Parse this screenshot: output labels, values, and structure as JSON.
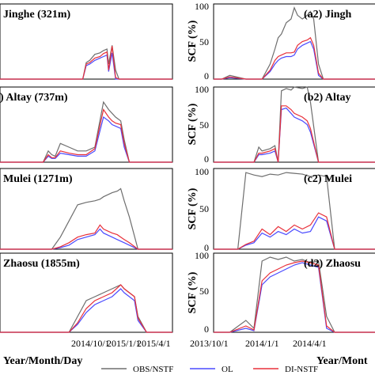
{
  "colors": {
    "obs": "#6e6e6e",
    "ol": "#4a4aff",
    "di": "#e8303a"
  },
  "legend": {
    "obs": "OBS/NSTF",
    "ol": "OL",
    "di": "DI-NSTF"
  },
  "left_column": {
    "xlabel": "Year/Month/Day",
    "xticks": [
      "2014/10/1",
      "2015/1/1",
      "2015/4/1"
    ]
  },
  "right_column": {
    "ylabel": "SCF (%)",
    "yticks": [
      "0",
      "50",
      "100"
    ],
    "xlabel": "Year/Mont",
    "xticks": [
      "2013/10/1",
      "2014/1/1",
      "2014/4/1"
    ]
  },
  "panels": {
    "a1": {
      "title": "Jinghe (321m)"
    },
    "a2": {
      "title": "(a2) Jingh"
    },
    "b1": {
      "title": ") Altay (737m)"
    },
    "b2": {
      "title": "(b2) Altay"
    },
    "c1": {
      "title": "Mulei (1271m)"
    },
    "c2": {
      "title": "(c2) Mulei"
    },
    "d1": {
      "title": "Zhaosu (1855m)"
    },
    "d2": {
      "title": "(d2) Zhaosu"
    }
  },
  "chart_data": [
    {
      "id": "a1",
      "type": "line",
      "xlabel": "Year/Month/Day",
      "ylabel": "",
      "ylim": [
        0,
        100
      ],
      "x": [
        0,
        5,
        10,
        20,
        30,
        40,
        45,
        48,
        50,
        52,
        55,
        58,
        60,
        62,
        63,
        65,
        67,
        69,
        72,
        75,
        85,
        90,
        95,
        100
      ],
      "series": [
        {
          "name": "OBS/NSTF",
          "values": [
            0,
            0,
            0,
            0,
            0,
            0,
            0,
            0,
            22,
            25,
            33,
            35,
            38,
            40,
            20,
            45,
            12,
            0,
            0,
            0,
            0,
            0,
            0,
            0
          ]
        },
        {
          "name": "OL",
          "values": [
            0,
            0,
            0,
            0,
            0,
            0,
            0,
            0,
            18,
            20,
            25,
            28,
            30,
            32,
            10,
            35,
            0,
            0,
            0,
            0,
            0,
            0,
            0,
            0
          ]
        },
        {
          "name": "DI-NSTF",
          "values": [
            0,
            0,
            0,
            0,
            0,
            0,
            0,
            0,
            20,
            22,
            28,
            30,
            34,
            36,
            12,
            44,
            2,
            0,
            0,
            0,
            0,
            0,
            0,
            0
          ]
        }
      ]
    },
    {
      "id": "a2",
      "type": "line",
      "xlabel": "Year/Mont",
      "ylabel": "SCF (%)",
      "ylim": [
        0,
        100
      ],
      "x": [
        0,
        5,
        10,
        20,
        30,
        35,
        38,
        40,
        42,
        45,
        48,
        50,
        52,
        55,
        58,
        60,
        62,
        65,
        68,
        70,
        75,
        85,
        100
      ],
      "series": [
        {
          "name": "OBS/NSTF",
          "values": [
            0,
            0,
            5,
            0,
            0,
            20,
            40,
            55,
            60,
            75,
            80,
            95,
            85,
            80,
            85,
            90,
            80,
            20,
            0,
            0,
            0,
            0,
            0
          ]
        },
        {
          "name": "OL",
          "values": [
            0,
            0,
            2,
            0,
            0,
            10,
            20,
            25,
            28,
            30,
            30,
            32,
            40,
            45,
            48,
            50,
            40,
            5,
            0,
            0,
            0,
            0,
            0
          ]
        },
        {
          "name": "DI-NSTF",
          "values": [
            0,
            0,
            3,
            0,
            0,
            12,
            25,
            30,
            32,
            35,
            35,
            36,
            45,
            50,
            52,
            55,
            45,
            8,
            0,
            0,
            0,
            0,
            0
          ]
        }
      ]
    },
    {
      "id": "b1",
      "type": "line",
      "xlabel": "Year/Month/Day",
      "ylabel": "",
      "ylim": [
        0,
        100
      ],
      "x": [
        0,
        10,
        20,
        25,
        28,
        30,
        32,
        35,
        40,
        45,
        50,
        55,
        60,
        63,
        65,
        67,
        70,
        72,
        75,
        80,
        90,
        100
      ],
      "series": [
        {
          "name": "OBS/NSTF",
          "values": [
            0,
            0,
            0,
            0,
            15,
            10,
            8,
            25,
            20,
            15,
            15,
            20,
            80,
            70,
            65,
            60,
            55,
            30,
            0,
            0,
            0,
            0
          ]
        },
        {
          "name": "OL",
          "values": [
            0,
            0,
            0,
            0,
            8,
            5,
            5,
            12,
            10,
            8,
            8,
            15,
            60,
            55,
            50,
            48,
            45,
            20,
            0,
            0,
            0,
            0
          ]
        },
        {
          "name": "DI-NSTF",
          "values": [
            0,
            0,
            0,
            0,
            10,
            6,
            6,
            15,
            12,
            10,
            10,
            18,
            70,
            60,
            55,
            52,
            50,
            25,
            0,
            0,
            0,
            0
          ]
        }
      ]
    },
    {
      "id": "b2",
      "type": "line",
      "xlabel": "Year/Mont",
      "ylabel": "SCF (%)",
      "ylim": [
        0,
        100
      ],
      "x": [
        0,
        5,
        10,
        20,
        25,
        28,
        30,
        35,
        38,
        40,
        42,
        45,
        48,
        50,
        55,
        58,
        60,
        65,
        70,
        80,
        100
      ],
      "series": [
        {
          "name": "OBS/NSTF",
          "values": [
            0,
            0,
            0,
            0,
            0,
            20,
            15,
            18,
            22,
            0,
            95,
            98,
            96,
            100,
            98,
            100,
            80,
            0,
            0,
            0,
            0
          ]
        },
        {
          "name": "OL",
          "values": [
            0,
            0,
            0,
            0,
            0,
            10,
            10,
            12,
            15,
            0,
            70,
            72,
            65,
            60,
            55,
            50,
            40,
            0,
            0,
            0,
            0
          ]
        },
        {
          "name": "DI-NSTF",
          "values": [
            0,
            0,
            0,
            0,
            0,
            12,
            12,
            15,
            18,
            0,
            75,
            75,
            70,
            65,
            60,
            55,
            45,
            0,
            0,
            0,
            0
          ]
        }
      ]
    },
    {
      "id": "c1",
      "type": "line",
      "xlabel": "Year/Month/Day",
      "ylabel": "",
      "ylim": [
        0,
        100
      ],
      "x": [
        0,
        10,
        20,
        30,
        35,
        40,
        45,
        50,
        55,
        58,
        60,
        65,
        68,
        70,
        72,
        75,
        80,
        90,
        100
      ],
      "series": [
        {
          "name": "OBS/NSTF",
          "values": [
            0,
            0,
            0,
            0,
            15,
            35,
            55,
            58,
            60,
            62,
            65,
            70,
            72,
            75,
            60,
            40,
            0,
            0,
            0
          ]
        },
        {
          "name": "OL",
          "values": [
            0,
            0,
            0,
            0,
            2,
            5,
            12,
            15,
            18,
            25,
            20,
            15,
            12,
            10,
            8,
            5,
            0,
            0,
            0
          ]
        },
        {
          "name": "DI-NSTF",
          "values": [
            0,
            0,
            0,
            0,
            3,
            8,
            15,
            18,
            20,
            30,
            25,
            20,
            18,
            15,
            12,
            8,
            0,
            0,
            0
          ]
        }
      ]
    },
    {
      "id": "c2",
      "type": "line",
      "xlabel": "Year/Mont",
      "ylabel": "SCF (%)",
      "ylim": [
        0,
        100
      ],
      "x": [
        0,
        10,
        15,
        20,
        25,
        30,
        35,
        40,
        45,
        50,
        55,
        60,
        65,
        70,
        75,
        80,
        90,
        100
      ],
      "series": [
        {
          "name": "OBS/NSTF",
          "values": [
            0,
            0,
            0,
            95,
            92,
            90,
            93,
            92,
            95,
            94,
            93,
            90,
            92,
            90,
            0,
            0,
            0,
            0
          ]
        },
        {
          "name": "OL",
          "values": [
            0,
            0,
            0,
            5,
            8,
            20,
            15,
            22,
            18,
            25,
            20,
            22,
            40,
            35,
            0,
            0,
            0,
            0
          ]
        },
        {
          "name": "DI-NSTF",
          "values": [
            0,
            0,
            0,
            6,
            10,
            25,
            18,
            28,
            22,
            30,
            25,
            30,
            45,
            40,
            0,
            0,
            0,
            0
          ]
        }
      ]
    },
    {
      "id": "d1",
      "type": "line",
      "xlabel": "Year/Month/Day",
      "ylabel": "",
      "ylim": [
        0,
        100
      ],
      "x": [
        0,
        10,
        20,
        30,
        40,
        45,
        50,
        55,
        60,
        65,
        70,
        72,
        75,
        78,
        80,
        85,
        90,
        100
      ],
      "series": [
        {
          "name": "OBS/NSTF",
          "values": [
            0,
            0,
            0,
            0,
            0,
            20,
            40,
            45,
            50,
            55,
            60,
            55,
            50,
            45,
            20,
            0,
            0,
            0
          ]
        },
        {
          "name": "OL",
          "values": [
            0,
            0,
            0,
            0,
            0,
            10,
            25,
            35,
            40,
            45,
            55,
            50,
            45,
            40,
            15,
            0,
            0,
            0
          ]
        },
        {
          "name": "DI-NSTF",
          "values": [
            0,
            0,
            0,
            0,
            0,
            12,
            30,
            40,
            45,
            50,
            60,
            55,
            50,
            45,
            18,
            0,
            0,
            0
          ]
        }
      ]
    },
    {
      "id": "d2",
      "type": "line",
      "xlabel": "Year/Mont",
      "ylabel": "SCF (%)",
      "ylim": [
        0,
        100
      ],
      "x": [
        0,
        5,
        10,
        20,
        25,
        30,
        35,
        40,
        45,
        50,
        55,
        60,
        65,
        70,
        75,
        80,
        90,
        100
      ],
      "series": [
        {
          "name": "OBS/NSTF",
          "values": [
            0,
            0,
            0,
            15,
            5,
            90,
            95,
            92,
            95,
            90,
            92,
            88,
            90,
            20,
            0,
            0,
            0,
            0
          ]
        },
        {
          "name": "OL",
          "values": [
            0,
            0,
            0,
            5,
            2,
            60,
            70,
            75,
            80,
            85,
            88,
            85,
            82,
            5,
            0,
            0,
            0,
            0
          ]
        },
        {
          "name": "DI-NSTF",
          "values": [
            0,
            0,
            0,
            8,
            3,
            65,
            75,
            80,
            85,
            88,
            90,
            88,
            85,
            8,
            0,
            0,
            0,
            0
          ]
        }
      ]
    }
  ]
}
